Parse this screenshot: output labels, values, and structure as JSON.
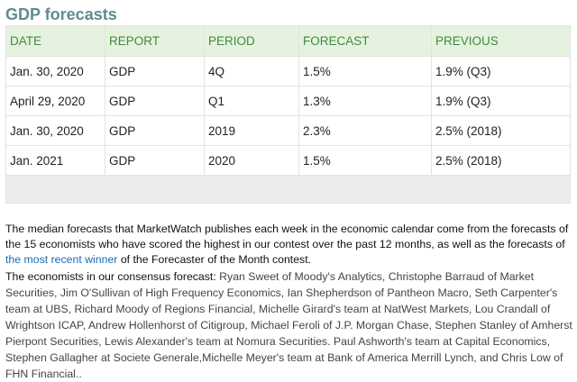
{
  "title": "GDP forecasts",
  "columns": [
    "DATE",
    "REPORT",
    "PERIOD",
    "FORECAST",
    "PREVIOUS"
  ],
  "rows": [
    [
      "Jan. 30, 2020",
      "GDP",
      "4Q",
      "1.5%",
      "1.9% (Q3)"
    ],
    [
      "April 29, 2020",
      "GDP",
      "Q1",
      "1.3%",
      "1.9% (Q3)"
    ],
    [
      "Jan. 30, 2020",
      "GDP",
      "2019",
      "2.3%",
      "2.5% (2018)"
    ],
    [
      "Jan. 2021",
      "GDP",
      "2020",
      "1.5%",
      "2.5% (2018)"
    ]
  ],
  "paragraph": {
    "before_link": "The median forecasts that MarketWatch publishes each week in the economic calendar come from the forecasts of the 15 economists who have scored the highest in our contest over the past 12 months, as well as the forecasts of ",
    "link_text": "the most recent winner",
    "after_link": " of the Forecaster of the Month contest."
  },
  "consensus": {
    "intro": "The economists in our consensus  forecast: ",
    "names": "Ryan Sweet of Moody's Analytics, Christophe Barraud of Market Securities, Jim O'Sullivan of High Frequency Economics, Ian Shepherdson of Pantheon Macro, Seth Carpenter's team at UBS, Richard Moody of Regions Financial, Michelle Girard's team at NatWest Markets, Lou Crandall of Wrightson ICAP, Andrew Hollenhorst of Citigroup, Michael Feroli of J.P. Morgan Chase, Stephen Stanley of Amherst Pierpont Securities, Lewis Alexander's team at Nomura Securities.  Paul Ashworth's team at Capital Economics, Stephen Gallagher at Societe Generale,Michelle Meyer's team at Bank of America Merrill Lynch, and Chris Low of FHN Financial.."
  }
}
